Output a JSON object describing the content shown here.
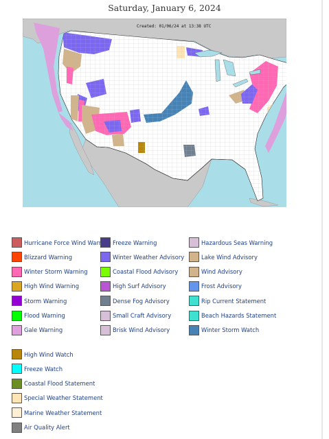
{
  "title": "Saturday, January 6, 2024",
  "map": {
    "created_stamp": "Created: 01/06/24 at 13:38 UTC",
    "colors": {
      "ocean": "#a9dde8",
      "foreign_land": "#c9c9c9",
      "us_land": "#ffffff",
      "gale_warning": "#dda0dd",
      "winter_weather_advisory": "#7b68ee",
      "winter_storm_warning": "#ff69b4",
      "winter_storm_watch": "#4682b4",
      "wind_advisory": "#d2b48c",
      "storm_warning": "#9400d3",
      "flood_warning": "#00ff00",
      "dense_fog_advisory": "#708090",
      "high_wind_watch": "#b8860b",
      "special_weather_statement": "#ffe4b5"
    }
  },
  "legend": {
    "col1": [
      {
        "label": "Hurricane Force Wind Warning",
        "color": "#cd5c5c"
      },
      {
        "label": "Blizzard Warning",
        "color": "#ff4500"
      },
      {
        "label": "Winter Storm Warning",
        "color": "#ff69b4"
      },
      {
        "label": "High Wind Warning",
        "color": "#daa520"
      },
      {
        "label": "Storm Warning",
        "color": "#9400d3"
      },
      {
        "label": "Flood Warning",
        "color": "#00ff00"
      },
      {
        "label": "Gale Warning",
        "color": "#dda0dd"
      }
    ],
    "col2": [
      {
        "label": "Freeze Warning",
        "color": "#483d8b"
      },
      {
        "label": "Winter Weather Advisory",
        "color": "#7b68ee"
      },
      {
        "label": "Coastal Flood Advisory",
        "color": "#7cfc00"
      },
      {
        "label": "High Surf Advisory",
        "color": "#ba55d3"
      },
      {
        "label": "Dense Fog Advisory",
        "color": "#708090"
      },
      {
        "label": "Small Craft Advisory",
        "color": "#d8bfd8"
      },
      {
        "label": "Brisk Wind Advisory",
        "color": "#d8bfd8"
      }
    ],
    "col3": [
      {
        "label": "Hazardous Seas Warning",
        "color": "#d8bfd8"
      },
      {
        "label": "Lake Wind Advisory",
        "color": "#d2b48c"
      },
      {
        "label": "Wind Advisory",
        "color": "#d2b48c"
      },
      {
        "label": "Frost Advisory",
        "color": "#6495ed"
      },
      {
        "label": "Rip Current Statement",
        "color": "#40e0d0"
      },
      {
        "label": "Beach Hazards Statement",
        "color": "#40e0d0"
      },
      {
        "label": "Winter Storm Watch",
        "color": "#4682b4"
      }
    ],
    "col4": [
      {
        "label": "High Wind Watch",
        "color": "#b8860b"
      },
      {
        "label": "Freeze Watch",
        "color": "#00ffff"
      },
      {
        "label": "Coastal Flood Statement",
        "color": "#6b8e23"
      },
      {
        "label": "Special Weather Statement",
        "color": "#ffe4b5"
      },
      {
        "label": "Marine Weather Statement",
        "color": "#ffefd5"
      },
      {
        "label": "Air Quality Alert",
        "color": "#808080"
      }
    ]
  }
}
